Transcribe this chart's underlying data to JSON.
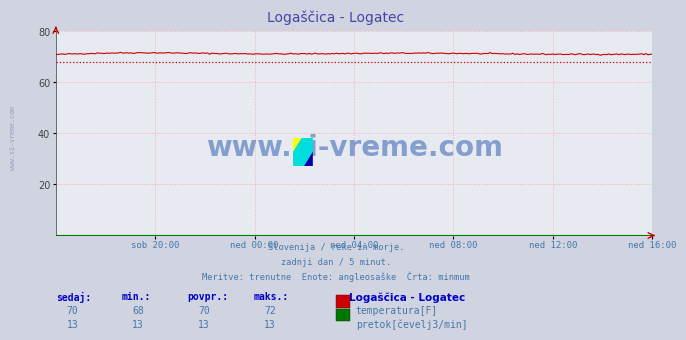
{
  "title": "Logaščica - Logatec",
  "title_color": "#4444aa",
  "bg_color": "#d0d4e0",
  "plot_bg_color": "#e8eaf2",
  "grid_color": "#ffaaaa",
  "ylim": [
    0,
    80
  ],
  "yticks": [
    20,
    40,
    60,
    80
  ],
  "xlabel_color": "#4477aa",
  "xtick_labels": [
    "sob 20:00",
    "ned 00:00",
    "ned 04:00",
    "ned 08:00",
    "ned 12:00",
    "ned 16:00"
  ],
  "temp_color": "#cc0000",
  "flow_color": "#007700",
  "min_line_color": "#cc0000",
  "min_value": 68,
  "temp_min": 68,
  "temp_max": 72,
  "temp_avg": 70,
  "temp_current": 70,
  "flow_min": 13,
  "flow_max": 13,
  "flow_avg": 13,
  "flow_current": 13,
  "subtitle_lines": [
    "Slovenija / reke in morje.",
    "zadnji dan / 5 minut.",
    "Meritve: trenutne  Enote: angleosaške  Črta: minmum"
  ],
  "subtitle_color": "#4477aa",
  "table_header_color": "#0000cc",
  "table_color": "#4477aa",
  "station_name": "Logaščica - Logatec",
  "label1": "temperatura[F]",
  "label2": "pretok[čevelj3/min]",
  "left_label": "www.si-vreme.com",
  "watermark_text": "www.si-vreme.com",
  "watermark_color": "#2255aa",
  "col_headers": [
    "sedaj:",
    "min.:",
    "povpr.:",
    "maks.:"
  ],
  "col_vals_temp": [
    "70",
    "68",
    "70",
    "72"
  ],
  "col_vals_flow": [
    "13",
    "13",
    "13",
    "13"
  ]
}
